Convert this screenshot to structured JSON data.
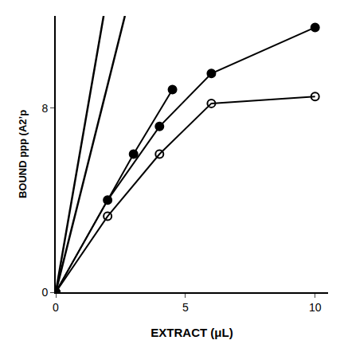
{
  "chart_data": {
    "type": "line",
    "xlabel": "EXTRACT (μL)",
    "ylabel": "BOUND ppp (A2’p",
    "xlim": [
      0,
      10.5
    ],
    "ylim": [
      0,
      12.0
    ],
    "xticks": [
      0,
      5,
      10
    ],
    "yticks": [
      0,
      8
    ],
    "grid": false,
    "series": [
      {
        "x": [
          0,
          1.8461538461538463
        ],
        "values": [
          0,
          12.0
        ],
        "marker": "none",
        "line_style": "solid",
        "color": "#000000"
      },
      {
        "x": [
          0,
          2.6666666666666665
        ],
        "values": [
          0,
          12.0
        ],
        "marker": "none",
        "line_style": "solid",
        "color": "#000000"
      },
      {
        "x": [
          0,
          3,
          4.5
        ],
        "values": [
          0,
          6.0,
          8.8
        ],
        "marker": "triangle-open",
        "line_style": "solid",
        "color": "#000000"
      },
      {
        "x": [
          0,
          2,
          4,
          6,
          10
        ],
        "values": [
          0,
          4.0,
          7.2,
          9.5,
          11.5
        ],
        "marker": "circle",
        "line_style": "solid",
        "color": "#000000"
      },
      {
        "x": [
          0,
          2,
          4,
          6,
          10
        ],
        "values": [
          0,
          3.3,
          6.0,
          8.2,
          8.5
        ],
        "marker": "circle-open",
        "line_style": "solid",
        "color": "#000000"
      }
    ]
  }
}
